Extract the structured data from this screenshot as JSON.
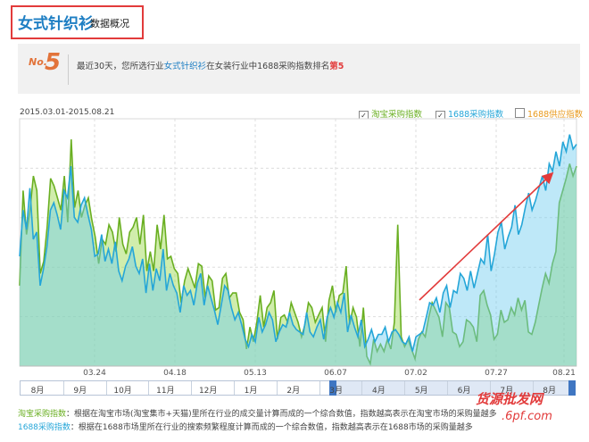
{
  "header": {
    "title_main": "女式针织衫",
    "title_sub": "数据概况"
  },
  "rank": {
    "no_label": "No.",
    "number": "5",
    "text_prefix": "最近30天，您所选行业",
    "text_highlight": "女式针织衫",
    "text_middle": "在女装行业中1688采购指数排名",
    "text_rank": "第5"
  },
  "chart": {
    "date_range": "2015.03.01-2015.08.21",
    "legend": [
      {
        "label": "淘宝采购指数",
        "checked": true,
        "color": "#6aaf22"
      },
      {
        "label": "1688采购指数",
        "checked": true,
        "color": "#25a6d8"
      },
      {
        "label": "1688供应指数",
        "checked": false,
        "color": "#e89a1e"
      }
    ],
    "x_ticks": [
      "03.24",
      "04.18",
      "05.13",
      "06.07",
      "07.02",
      "07.27",
      "08.21"
    ],
    "navigator_months": [
      "8月",
      "9月",
      "10月",
      "11月",
      "12月",
      "1月",
      "2月",
      "3月",
      "4月",
      "5月",
      "6月",
      "7月",
      "8月"
    ]
  },
  "chart_data": {
    "type": "area",
    "title": "",
    "x_range": [
      "2015.03.01",
      "2015.08.21"
    ],
    "x_ticks": [
      "03.24",
      "04.18",
      "05.13",
      "06.07",
      "07.02",
      "07.27",
      "08.21"
    ],
    "ylim": [
      0,
      1
    ],
    "y_labels_shown": false,
    "grid": true,
    "legend_position": "top-right",
    "series": [
      {
        "name": "淘宝采购指数",
        "color": "#6aaf22",
        "values": [
          0.33,
          0.72,
          0.54,
          0.64,
          0.78,
          0.72,
          0.38,
          0.43,
          0.57,
          0.77,
          0.74,
          0.69,
          0.64,
          0.78,
          0.59,
          0.93,
          0.65,
          0.72,
          0.61,
          0.66,
          0.69,
          0.6,
          0.53,
          0.42,
          0.52,
          0.5,
          0.58,
          0.55,
          0.47,
          0.61,
          0.5,
          0.46,
          0.55,
          0.57,
          0.61,
          0.5,
          0.62,
          0.39,
          0.47,
          0.39,
          0.58,
          0.48,
          0.62,
          0.44,
          0.45,
          0.4,
          0.38,
          0.26,
          0.35,
          0.4,
          0.36,
          0.32,
          0.42,
          0.41,
          0.28,
          0.37,
          0.35,
          0.23,
          0.24,
          0.36,
          0.38,
          0.28,
          0.3,
          0.3,
          0.22,
          0.19,
          0.07,
          0.16,
          0.1,
          0.18,
          0.29,
          0.16,
          0.24,
          0.26,
          0.31,
          0.11,
          0.2,
          0.21,
          0.18,
          0.26,
          0.22,
          0.18,
          0.12,
          0.17,
          0.26,
          0.24,
          0.18,
          0.21,
          0.24,
          0.1,
          0.27,
          0.33,
          0.22,
          0.29,
          0.3,
          0.41,
          0.17,
          0.24,
          0.2,
          0.08,
          0.24,
          0.04,
          0.01,
          0.11,
          0.06,
          0.09,
          0.06,
          0.11,
          0.07,
          0.18,
          0.58,
          0.12,
          0.08,
          0.11,
          0.07,
          0.03,
          0.11,
          0.14,
          0.12,
          0.2,
          0.26,
          0.23,
          0.2,
          0.12,
          0.26,
          0.24,
          0.14,
          0.13,
          0.08,
          0.1,
          0.19,
          0.18,
          0.16,
          0.1,
          0.29,
          0.31,
          0.25,
          0.21,
          0.11,
          0.13,
          0.23,
          0.18,
          0.19,
          0.24,
          0.21,
          0.28,
          0.23,
          0.27,
          0.14,
          0.13,
          0.18,
          0.25,
          0.32,
          0.38,
          0.34,
          0.42,
          0.47,
          0.67,
          0.72,
          0.77,
          0.83,
          0.78,
          0.82
        ]
      },
      {
        "name": "1688采购指数",
        "color": "#25a6d8",
        "values": [
          0.45,
          0.64,
          0.56,
          0.73,
          0.52,
          0.55,
          0.33,
          0.4,
          0.49,
          0.64,
          0.67,
          0.62,
          0.56,
          0.72,
          0.69,
          0.82,
          0.61,
          0.59,
          0.66,
          0.69,
          0.62,
          0.56,
          0.45,
          0.46,
          0.54,
          0.43,
          0.48,
          0.42,
          0.51,
          0.39,
          0.35,
          0.41,
          0.44,
          0.49,
          0.41,
          0.38,
          0.44,
          0.3,
          0.42,
          0.31,
          0.4,
          0.35,
          0.48,
          0.31,
          0.38,
          0.33,
          0.3,
          0.22,
          0.33,
          0.29,
          0.31,
          0.25,
          0.34,
          0.38,
          0.25,
          0.33,
          0.28,
          0.23,
          0.17,
          0.25,
          0.33,
          0.31,
          0.24,
          0.19,
          0.22,
          0.17,
          0.11,
          0.08,
          0.13,
          0.1,
          0.2,
          0.14,
          0.17,
          0.22,
          0.19,
          0.1,
          0.14,
          0.17,
          0.16,
          0.22,
          0.17,
          0.15,
          0.14,
          0.13,
          0.22,
          0.14,
          0.12,
          0.16,
          0.19,
          0.11,
          0.2,
          0.24,
          0.2,
          0.26,
          0.22,
          0.3,
          0.14,
          0.21,
          0.16,
          0.12,
          0.19,
          0.08,
          0.11,
          0.15,
          0.1,
          0.13,
          0.13,
          0.16,
          0.1,
          0.14,
          0.15,
          0.13,
          0.1,
          0.09,
          0.12,
          0.06,
          0.12,
          0.13,
          0.14,
          0.2,
          0.26,
          0.25,
          0.28,
          0.22,
          0.3,
          0.33,
          0.24,
          0.31,
          0.3,
          0.38,
          0.36,
          0.31,
          0.39,
          0.32,
          0.38,
          0.44,
          0.42,
          0.54,
          0.39,
          0.46,
          0.55,
          0.59,
          0.48,
          0.53,
          0.57,
          0.66,
          0.54,
          0.58,
          0.65,
          0.71,
          0.64,
          0.68,
          0.73,
          0.78,
          0.72,
          0.83,
          0.8,
          0.88,
          0.82,
          0.92,
          0.88,
          0.95,
          0.89,
          0.91
        ]
      }
    ]
  },
  "footer": {
    "row1_key": "淘宝采购指数",
    "row1_text": "：根据在淘宝市场(淘宝集市+天猫)里所在行业的成交量计算而成的一个综合数值，指数越高表示在淘宝市场的采购量越多",
    "row2_key": "1688采购指数",
    "row2_text": "：根据在1688市场里所在行业的搜索频繁程度计算而成的一个综合数值，指数越高表示在1688市场的采购量越多"
  },
  "watermark": {
    "line1": "货源批发网",
    "line2": ".6pf.com"
  }
}
